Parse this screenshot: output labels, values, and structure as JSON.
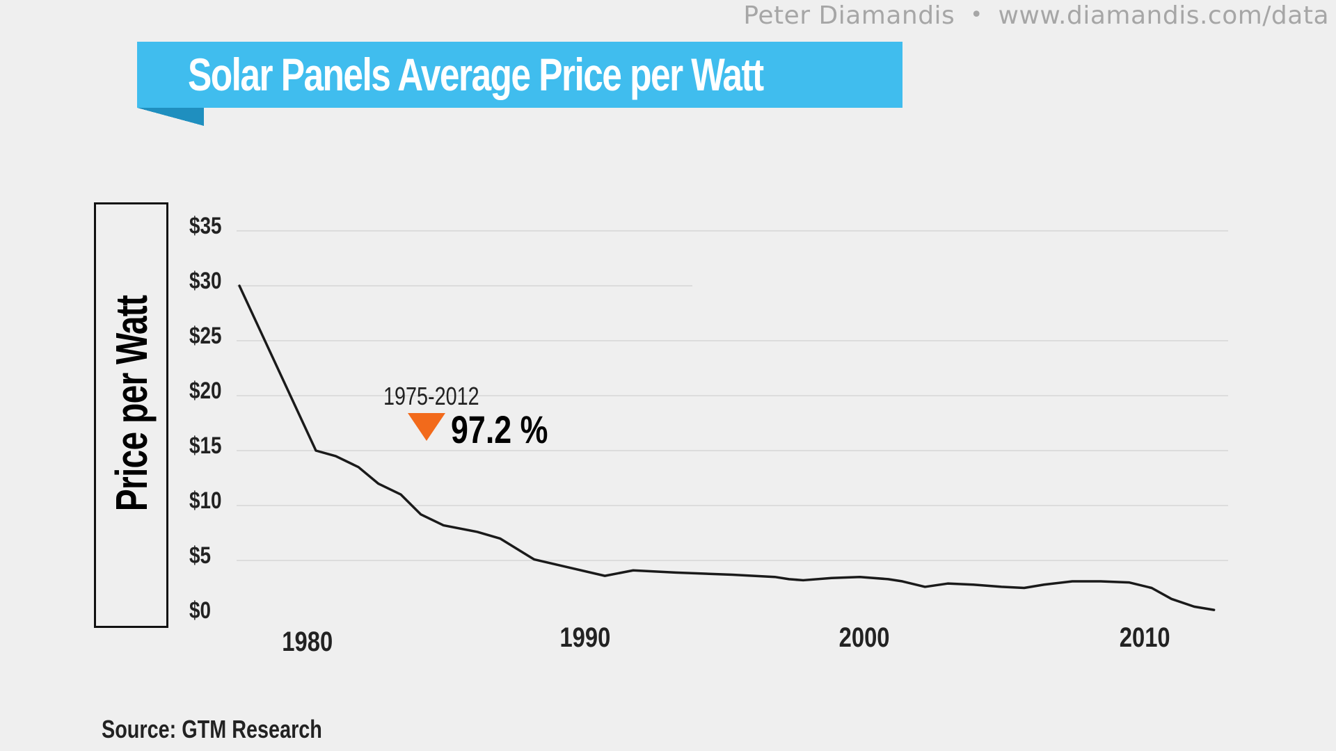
{
  "credit": {
    "author": "Peter Diamandis",
    "separator": "•",
    "url": "www.diamandis.com/data"
  },
  "colors": {
    "banner": "#40bdee",
    "banner_fold": "#1f8fbf",
    "line": "#1a1a1a",
    "grid": "#d6d6d6",
    "marker": "#f26a1b"
  },
  "chart_data": {
    "type": "line",
    "title": "Solar Panels Average Price per Watt",
    "ylabel": "Price per Watt",
    "xlabel": "",
    "xlim": [
      1977.5,
      2012.5
    ],
    "ylim": [
      0,
      35
    ],
    "yticks": [
      "$35",
      "$30",
      "$25",
      "$20",
      "$15",
      "$10",
      "$5",
      "$0"
    ],
    "ytick_values": [
      35,
      30,
      25,
      20,
      15,
      10,
      5,
      0
    ],
    "xticks": [
      "1980",
      "1990",
      "2000",
      "2010"
    ],
    "xtick_values": [
      1980,
      1990,
      2000,
      2010
    ],
    "grid": true,
    "series": [
      {
        "name": "Average price per watt",
        "x": [
          1977.6,
          1980.3,
          1981.0,
          1981.8,
          1982.5,
          1983.3,
          1984.0,
          1984.8,
          1986.0,
          1986.8,
          1988.0,
          1989.0,
          1990.5,
          1991.5,
          1993.0,
          1995.0,
          1996.5,
          1997.0,
          1997.5,
          1998.5,
          1999.5,
          2000.5,
          2001.0,
          2001.8,
          2002.6,
          2003.5,
          2004.5,
          2005.3,
          2006.0,
          2007.0,
          2008.0,
          2009.0,
          2009.8,
          2010.5,
          2011.3,
          2012.0
        ],
        "values": [
          30,
          15,
          14.5,
          13.5,
          12,
          11,
          9.2,
          8.2,
          7.6,
          7,
          5.1,
          4.5,
          3.6,
          4.1,
          3.9,
          3.7,
          3.5,
          3.3,
          3.2,
          3.4,
          3.5,
          3.3,
          3.1,
          2.6,
          2.9,
          2.8,
          2.6,
          2.5,
          2.8,
          3.1,
          3.1,
          3.0,
          2.5,
          1.5,
          0.8,
          0.5
        ]
      }
    ],
    "annotations": [
      {
        "type": "change",
        "label": "1975-2012",
        "value": "97.2 %",
        "direction": "down"
      }
    ],
    "source": "Source: GTM Research"
  }
}
